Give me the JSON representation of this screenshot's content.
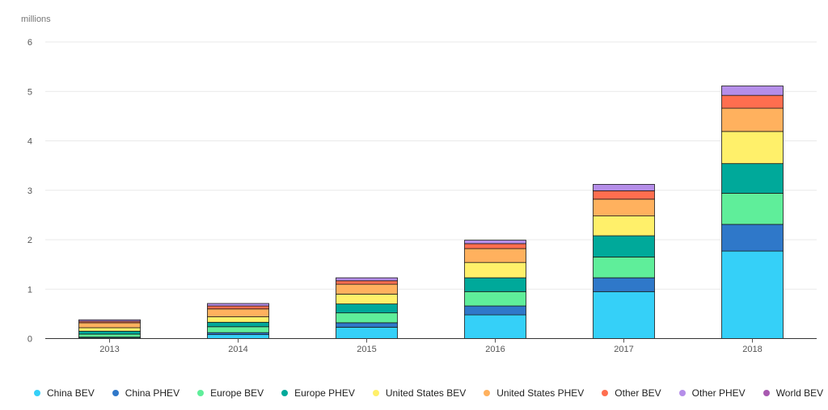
{
  "chart_data": {
    "type": "bar",
    "stacked": true,
    "unit_label": "millions",
    "title": "",
    "xlabel": "",
    "ylabel": "",
    "ylim": [
      0,
      6
    ],
    "yticks": [
      0,
      1,
      2,
      3,
      4,
      5,
      6
    ],
    "grid": true,
    "legend_position": "bottom",
    "categories": [
      "2013",
      "2014",
      "2015",
      "2016",
      "2017",
      "2018"
    ],
    "series": [
      {
        "name": "China BEV",
        "color": "#35d0f8",
        "values": [
          0.02,
          0.08,
          0.23,
          0.48,
          0.95,
          1.77
        ]
      },
      {
        "name": "China PHEV",
        "color": "#2f78c9",
        "values": [
          0.01,
          0.04,
          0.09,
          0.18,
          0.28,
          0.54
        ]
      },
      {
        "name": "Europe BEV",
        "color": "#5fee9a",
        "values": [
          0.06,
          0.12,
          0.2,
          0.29,
          0.42,
          0.63
        ]
      },
      {
        "name": "Europe PHEV",
        "color": "#00a99a",
        "values": [
          0.06,
          0.09,
          0.18,
          0.28,
          0.43,
          0.6
        ]
      },
      {
        "name": "United States BEV",
        "color": "#fff06a",
        "values": [
          0.07,
          0.11,
          0.2,
          0.31,
          0.4,
          0.65
        ]
      },
      {
        "name": "United States PHEV",
        "color": "#ffb15e",
        "values": [
          0.1,
          0.16,
          0.2,
          0.28,
          0.34,
          0.47
        ]
      },
      {
        "name": "Other BEV",
        "color": "#ff6e4f",
        "values": [
          0.03,
          0.06,
          0.07,
          0.1,
          0.17,
          0.26
        ]
      },
      {
        "name": "Other PHEV",
        "color": "#b58ee9",
        "values": [
          0.03,
          0.05,
          0.06,
          0.07,
          0.13,
          0.19
        ]
      },
      {
        "name": "World BEV",
        "color": "#a859b0",
        "values": [
          0.0,
          0.0,
          0.0,
          0.0,
          0.0,
          0.0
        ]
      }
    ]
  }
}
